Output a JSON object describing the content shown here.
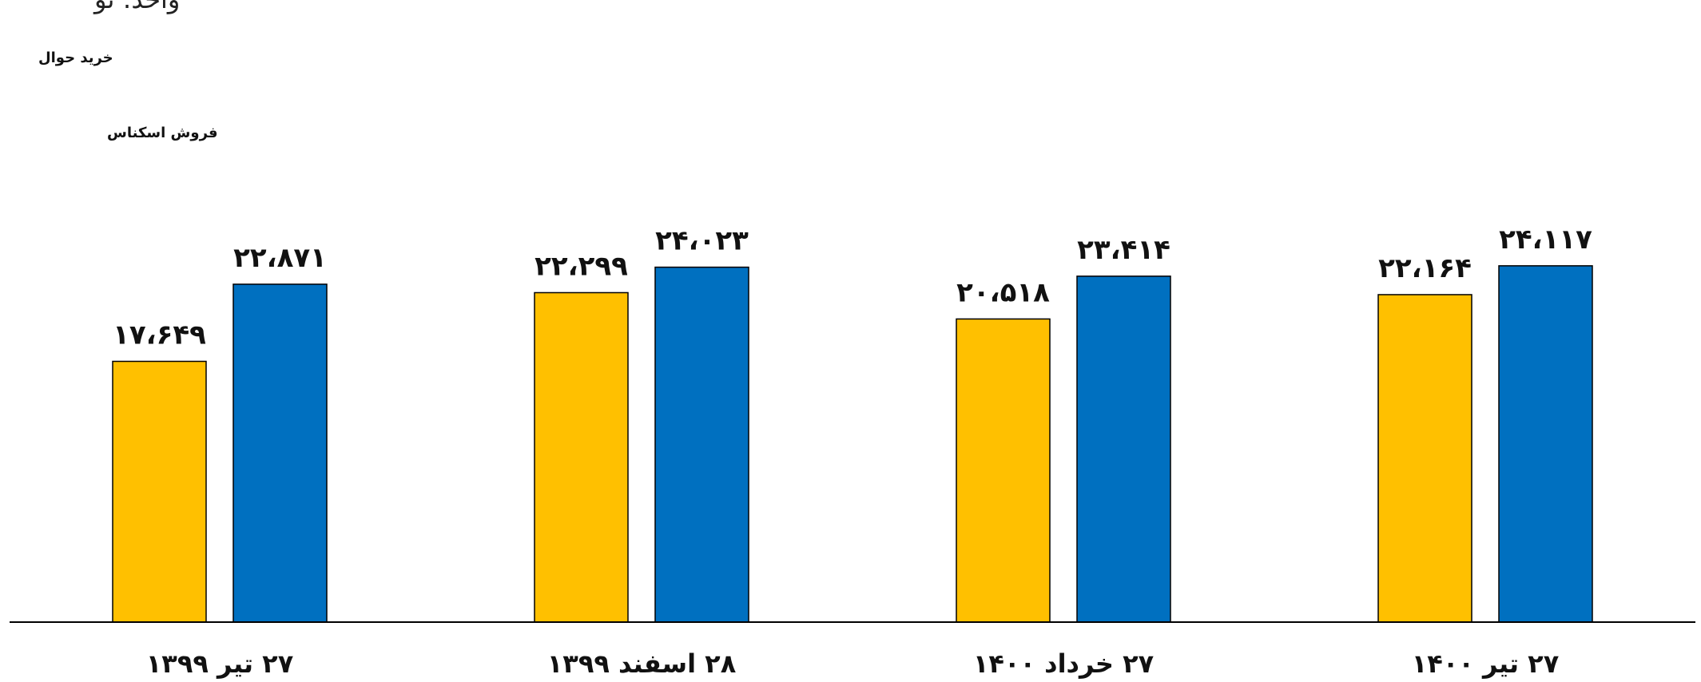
{
  "header": {
    "unit_text": "واحد: تو"
  },
  "legend": {
    "items": [
      {
        "label": "خرید حوال",
        "color": "#FFC000"
      },
      {
        "label": "فروش اسکناس",
        "color": "#0070C0"
      }
    ]
  },
  "colors": {
    "buy": "#FFC000",
    "sell": "#0070C0",
    "axis": "#000000"
  },
  "chart_data": {
    "type": "bar",
    "title": "",
    "xlabel": "",
    "ylabel": "",
    "ylim": [
      0,
      25000
    ],
    "grid": false,
    "legend_position": "top-left",
    "categories": [
      "۲۷ تیر ۱۳۹۹",
      "۲۸ اسفند ۱۳۹۹",
      "۲۷ خرداد ۱۴۰۰",
      "۲۷ تیر ۱۴۰۰"
    ],
    "series": [
      {
        "name": "خرید حوال",
        "color": "#FFC000",
        "values": [
          17649,
          22299,
          20518,
          22164
        ],
        "value_labels": [
          "۱۷،۶۴۹",
          "۲۲،۲۹۹",
          "۲۰،۵۱۸",
          "۲۲،۱۶۴"
        ]
      },
      {
        "name": "فروش اسکناس",
        "color": "#0070C0",
        "values": [
          22871,
          24023,
          23414,
          24117
        ],
        "value_labels": [
          "۲۲،۸۷۱",
          "۲۴،۰۲۳",
          "۲۳،۴۱۴",
          "۲۴،۱۱۷"
        ]
      }
    ]
  }
}
